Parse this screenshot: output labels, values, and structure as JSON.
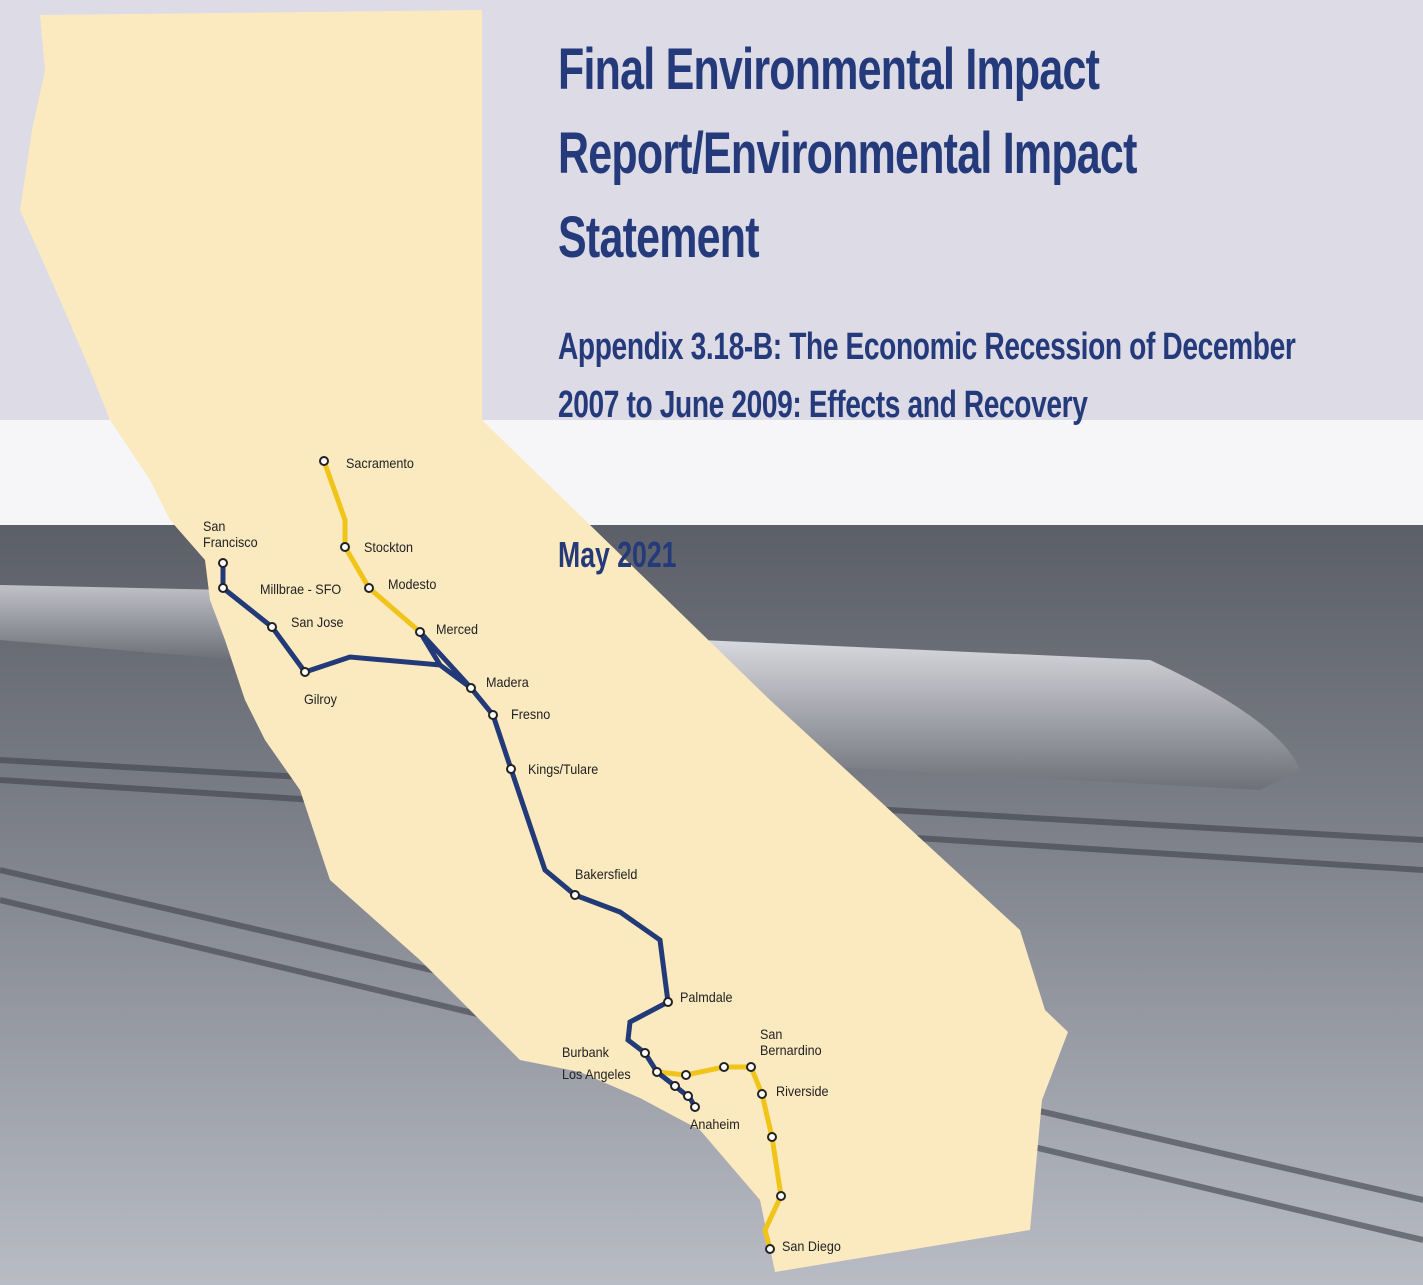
{
  "header": {
    "title": "Final Environmental Impact Report/Environmental Impact Statement",
    "subtitle": "Appendix 3.18-B: The Economic Recession of December 2007 to June 2009: Effects and Recovery",
    "date": "May 2021"
  },
  "map": {
    "stations": [
      "Sacramento",
      "Stockton",
      "Modesto",
      "Merced",
      "San Francisco",
      "Millbrae - SFO",
      "San Jose",
      "Gilroy",
      "Madera",
      "Fresno",
      "Kings/Tulare",
      "Bakersfield",
      "Palmdale",
      "Burbank",
      "Los Angeles",
      "Anaheim",
      "San Bernardino",
      "Riverside",
      "San Diego"
    ]
  }
}
